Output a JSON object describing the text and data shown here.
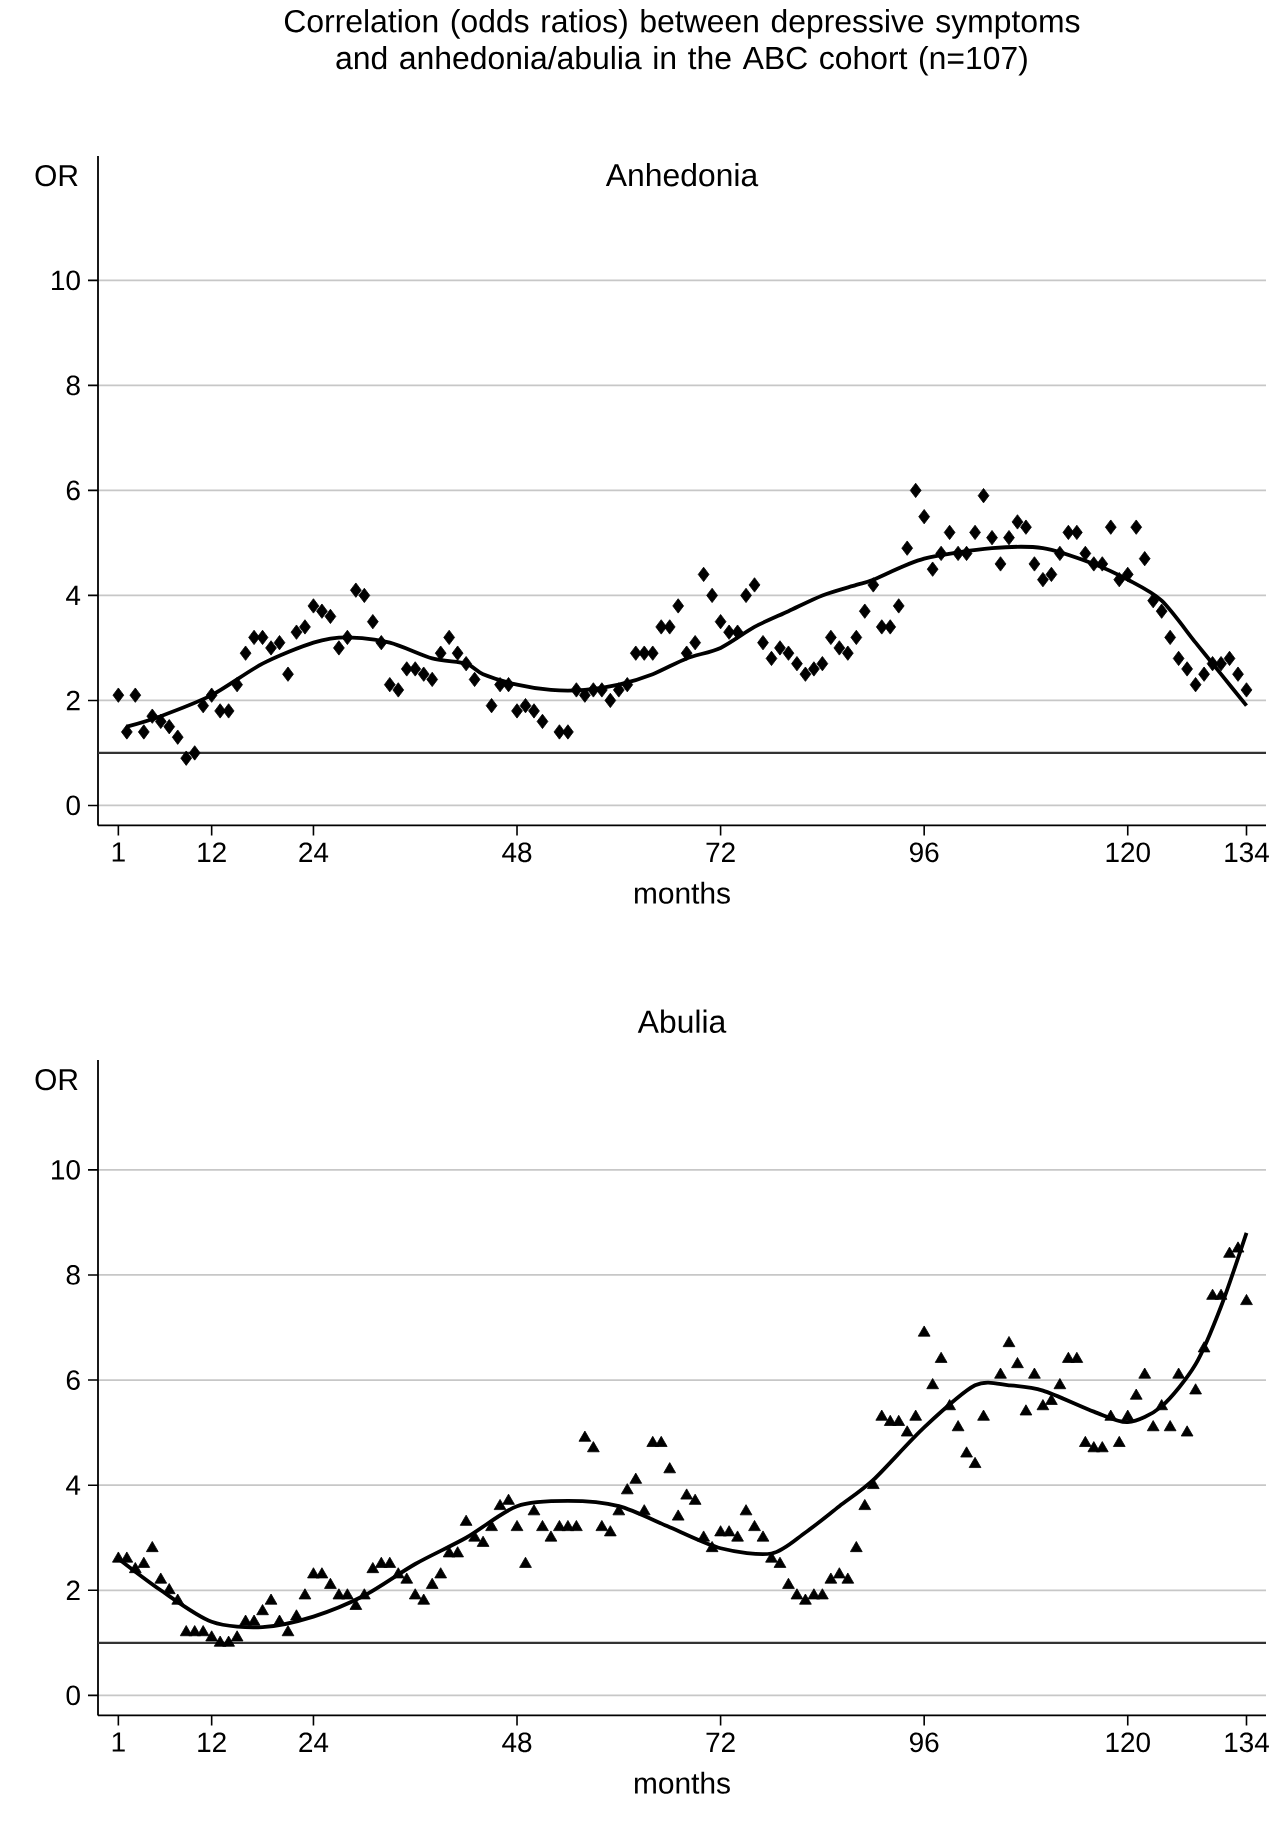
{
  "chart_data": [
    {
      "type": "scatter",
      "title": "Correlation (odds ratios) between depressive symptoms and anhedonia/abulia in the ABC cohort (n=107)",
      "subtitle": "Anhedonia",
      "xlabel": "months",
      "ylabel": "OR",
      "xlim": [
        -1.4,
        136.3
      ],
      "ylim": [
        -0.38,
        12.37
      ],
      "xticks": [
        1,
        12,
        24,
        48,
        72,
        96,
        120,
        134
      ],
      "yticks": [
        0,
        2,
        4,
        6,
        8,
        10
      ],
      "grid": "y",
      "ref_lines": [
        {
          "axis": "y",
          "value": 1,
          "color": "#333333"
        }
      ],
      "series": [
        {
          "marker": "diamond",
          "color": "#000000",
          "x": [
            1,
            2,
            3,
            4,
            5,
            6,
            7,
            8,
            9,
            10,
            11,
            12,
            13,
            14,
            15,
            16,
            17,
            18,
            19,
            20,
            21,
            22,
            23,
            24,
            25,
            26,
            27,
            28,
            29,
            30,
            31,
            32,
            33,
            34,
            35,
            36,
            37,
            38,
            39,
            40,
            41,
            42,
            43,
            45,
            46,
            47,
            48,
            49,
            50,
            51,
            53,
            54,
            55,
            56,
            57,
            58,
            59,
            60,
            61,
            62,
            63,
            64,
            65,
            66,
            67,
            68,
            69,
            70,
            71,
            72,
            73,
            74,
            75,
            76,
            77,
            78,
            79,
            80,
            81,
            82,
            83,
            84,
            85,
            86,
            87,
            88,
            89,
            90,
            91,
            92,
            93,
            94,
            95,
            96,
            97,
            98,
            99,
            100,
            101,
            102,
            103,
            104,
            105,
            106,
            107,
            108,
            109,
            110,
            111,
            112,
            113,
            114,
            115,
            116,
            117,
            118,
            119,
            120,
            121,
            122,
            123,
            124,
            125,
            126,
            127,
            128,
            129,
            130,
            131,
            132,
            133,
            134
          ],
          "values": [
            2.1,
            1.4,
            2.1,
            1.4,
            1.7,
            1.6,
            1.5,
            1.3,
            0.9,
            1.0,
            1.9,
            2.1,
            1.8,
            1.8,
            2.3,
            2.9,
            3.2,
            3.2,
            3.0,
            3.1,
            2.5,
            3.3,
            3.4,
            3.8,
            3.7,
            3.6,
            3.0,
            3.2,
            4.1,
            4.0,
            3.5,
            3.1,
            2.3,
            2.2,
            2.6,
            2.6,
            2.5,
            2.4,
            2.9,
            3.2,
            2.9,
            2.7,
            2.4,
            1.9,
            2.3,
            2.3,
            1.8,
            1.9,
            1.8,
            1.6,
            1.4,
            1.4,
            2.2,
            2.1,
            2.2,
            2.2,
            2.0,
            2.2,
            2.3,
            2.9,
            2.9,
            2.9,
            3.4,
            3.4,
            3.8,
            2.9,
            3.1,
            4.4,
            4.0,
            3.5,
            3.3,
            3.3,
            4.0,
            4.2,
            3.1,
            2.8,
            3.0,
            2.9,
            2.7,
            2.5,
            2.6,
            2.7,
            3.2,
            3.0,
            2.9,
            3.2,
            3.7,
            4.2,
            3.4,
            3.4,
            3.8,
            4.9,
            6.0,
            5.5,
            4.5,
            4.8,
            5.2,
            4.8,
            4.8,
            5.2,
            5.9,
            5.1,
            4.6,
            5.1,
            5.4,
            5.3,
            4.6,
            4.3,
            4.4,
            4.8,
            5.2,
            5.2,
            4.8,
            4.6,
            4.6,
            5.3,
            4.3,
            4.4,
            5.3,
            4.7,
            3.9,
            3.7,
            3.2,
            2.8,
            2.6,
            2.3,
            2.5,
            2.7,
            2.7,
            2.8,
            2.5,
            2.2
          ]
        },
        {
          "type": "line",
          "color": "#000000",
          "x": [
            2,
            6,
            12,
            18,
            24,
            28,
            33,
            38,
            42,
            44,
            48,
            52,
            56,
            60,
            64,
            68,
            72,
            76,
            80,
            84,
            88,
            90,
            96,
            104,
            110,
            116,
            120,
            124,
            128,
            131,
            134
          ],
          "values": [
            1.5,
            1.7,
            2.1,
            2.7,
            3.1,
            3.2,
            3.1,
            2.8,
            2.7,
            2.5,
            2.3,
            2.2,
            2.2,
            2.3,
            2.5,
            2.8,
            3.0,
            3.4,
            3.7,
            4.0,
            4.2,
            4.3,
            4.7,
            4.9,
            4.9,
            4.6,
            4.3,
            3.9,
            3.1,
            2.5,
            1.9
          ]
        }
      ]
    },
    {
      "type": "scatter",
      "title": "Abulia",
      "xlabel": "months",
      "ylabel": "OR",
      "xlim": [
        -1.4,
        136.3
      ],
      "ylim": [
        -0.38,
        12.09
      ],
      "xticks": [
        1,
        12,
        24,
        48,
        72,
        96,
        120,
        134
      ],
      "yticks": [
        0,
        2,
        4,
        6,
        8,
        10
      ],
      "grid": "y",
      "ref_lines": [
        {
          "axis": "y",
          "value": 1,
          "color": "#333333"
        }
      ],
      "series": [
        {
          "marker": "triangle",
          "color": "#000000",
          "x": [
            1,
            2,
            3,
            4,
            5,
            6,
            7,
            8,
            9,
            10,
            11,
            12,
            13,
            14,
            15,
            16,
            17,
            18,
            19,
            20,
            21,
            22,
            23,
            24,
            25,
            26,
            27,
            28,
            29,
            30,
            31,
            32,
            33,
            34,
            35,
            36,
            37,
            38,
            39,
            40,
            41,
            42,
            43,
            44,
            45,
            46,
            47,
            48,
            49,
            50,
            51,
            52,
            53,
            54,
            55,
            56,
            57,
            58,
            59,
            60,
            61,
            62,
            63,
            64,
            65,
            66,
            67,
            68,
            69,
            70,
            71,
            72,
            73,
            74,
            75,
            76,
            77,
            78,
            79,
            80,
            81,
            82,
            83,
            84,
            85,
            86,
            87,
            88,
            89,
            90,
            91,
            92,
            93,
            94,
            95,
            96,
            97,
            98,
            99,
            100,
            101,
            102,
            103,
            105,
            106,
            107,
            108,
            109,
            110,
            111,
            112,
            113,
            114,
            115,
            116,
            117,
            118,
            119,
            120,
            121,
            122,
            123,
            124,
            125,
            126,
            127,
            128,
            129,
            130,
            131,
            132,
            133,
            134
          ],
          "values": [
            2.6,
            2.6,
            2.4,
            2.5,
            2.8,
            2.2,
            2.0,
            1.8,
            1.2,
            1.2,
            1.2,
            1.1,
            1.0,
            1.0,
            1.1,
            1.4,
            1.4,
            1.6,
            1.8,
            1.4,
            1.2,
            1.5,
            1.9,
            2.3,
            2.3,
            2.1,
            1.9,
            1.9,
            1.7,
            1.9,
            2.4,
            2.5,
            2.5,
            2.3,
            2.2,
            1.9,
            1.8,
            2.1,
            2.3,
            2.7,
            2.7,
            3.3,
            3.0,
            2.9,
            3.2,
            3.6,
            3.7,
            3.2,
            2.5,
            3.5,
            3.2,
            3.0,
            3.2,
            3.2,
            3.2,
            4.9,
            4.7,
            3.2,
            3.1,
            3.5,
            3.9,
            4.1,
            3.5,
            4.8,
            4.8,
            4.3,
            3.4,
            3.8,
            3.7,
            3.0,
            2.8,
            3.1,
            3.1,
            3.0,
            3.5,
            3.2,
            3.0,
            2.6,
            2.5,
            2.1,
            1.9,
            1.8,
            1.9,
            1.9,
            2.2,
            2.3,
            2.2,
            2.8,
            3.6,
            4.0,
            5.3,
            5.2,
            5.2,
            5.0,
            5.3,
            6.9,
            5.9,
            6.4,
            5.5,
            5.1,
            4.6,
            4.4,
            5.3,
            6.1,
            6.7,
            6.3,
            5.4,
            6.1,
            5.5,
            5.6,
            5.9,
            6.4,
            6.4,
            4.8,
            4.7,
            4.7,
            5.3,
            4.8,
            5.3,
            5.7,
            6.1,
            5.1,
            5.5,
            5.1,
            6.1,
            5.0,
            5.8,
            6.6,
            7.6,
            7.6,
            8.4,
            8.5,
            7.5
          ]
        },
        {
          "type": "line",
          "color": "#000000",
          "x": [
            1,
            6,
            12,
            18,
            24,
            30,
            36,
            42,
            48,
            54,
            60,
            66,
            72,
            78,
            82,
            86,
            90,
            96,
            102,
            106,
            110,
            116,
            120,
            124,
            128,
            131,
            134
          ],
          "values": [
            2.6,
            2.0,
            1.4,
            1.3,
            1.5,
            1.9,
            2.5,
            3.0,
            3.6,
            3.7,
            3.6,
            3.2,
            2.8,
            2.7,
            3.1,
            3.6,
            4.1,
            5.1,
            5.9,
            5.9,
            5.8,
            5.4,
            5.2,
            5.5,
            6.3,
            7.4,
            8.8
          ]
        }
      ]
    }
  ]
}
